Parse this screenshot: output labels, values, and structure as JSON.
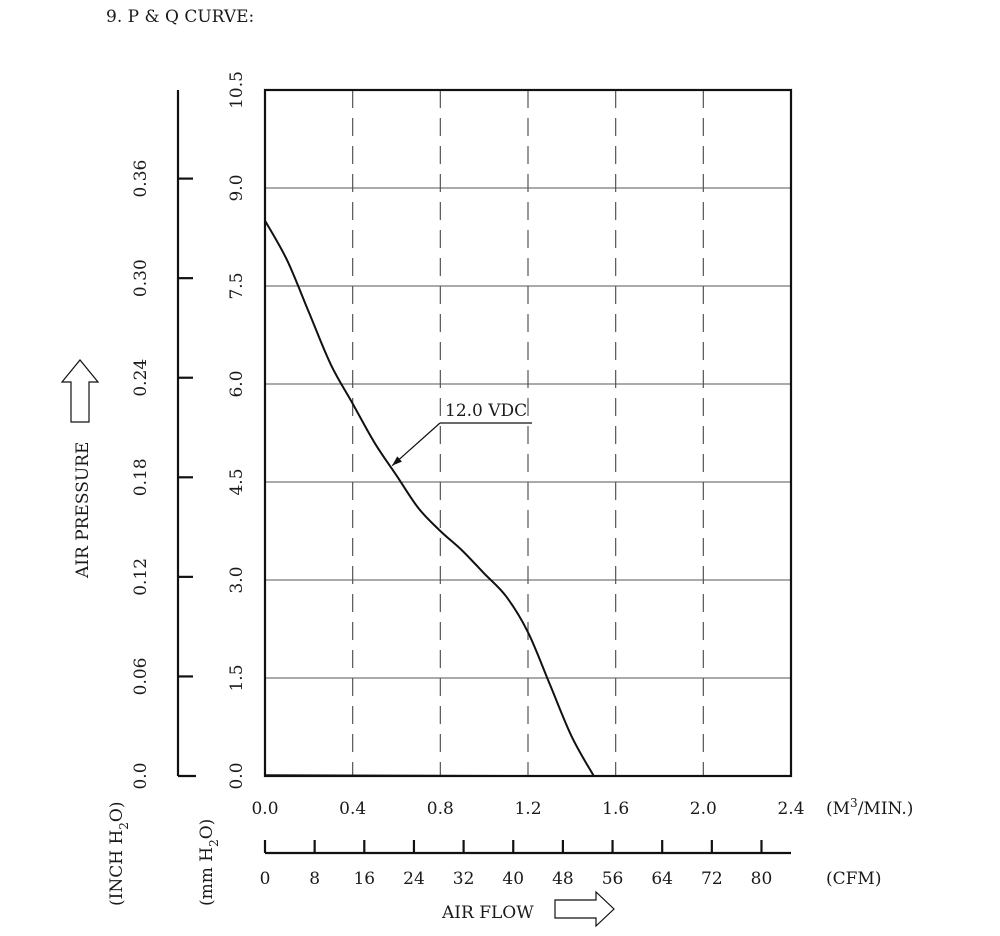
{
  "header": {
    "title": "9. P & Q CURVE:"
  },
  "chart_data": {
    "type": "line",
    "x_axis_primary": {
      "label_unit": "(M3/MIN.)",
      "label_base": "(M",
      "label_sup": "3",
      "label_tail": "/MIN.)",
      "range": [
        0,
        2.4
      ],
      "ticks": [
        "0.0",
        "0.4",
        "0.8",
        "1.2",
        "1.6",
        "2.0",
        "2.4"
      ],
      "tick_values": [
        0,
        0.4,
        0.8,
        1.2,
        1.6,
        2.0,
        2.4
      ]
    },
    "x_axis_secondary": {
      "label_unit": "(CFM)",
      "ticks": [
        "0",
        "8",
        "16",
        "24",
        "32",
        "40",
        "48",
        "56",
        "64",
        "72",
        "80"
      ],
      "tick_values": [
        0,
        8,
        16,
        24,
        32,
        40,
        48,
        56,
        64,
        72,
        80
      ]
    },
    "x_title": "AIR FLOW",
    "y_axis_primary": {
      "label_unit": "(mm H2O)",
      "label_base": "(mm H",
      "label_sub": "2",
      "label_tail": "O)",
      "range": [
        0,
        10.5
      ],
      "ticks": [
        "0.0",
        "1.5",
        "3.0",
        "4.5",
        "6.0",
        "7.5",
        "9.0",
        "10.5"
      ],
      "tick_values": [
        0,
        1.5,
        3.0,
        4.5,
        6.0,
        7.5,
        9.0,
        10.5
      ]
    },
    "y_axis_secondary": {
      "label_unit": "(INCH H2O)",
      "label_base": "(INCH H",
      "label_sub": "2",
      "label_tail": "O)",
      "ticks": [
        "0.0",
        "0.06",
        "0.12",
        "0.18",
        "0.24",
        "0.30",
        "0.36"
      ],
      "tick_values": [
        0,
        0.06,
        0.12,
        0.18,
        0.24,
        0.3,
        0.36
      ]
    },
    "y_title": "AIR PRESSURE",
    "grid": {
      "horizontal": "solid",
      "vertical": "dashed"
    },
    "series": [
      {
        "name": "12.0 VDC",
        "x": [
          0.0,
          0.1,
          0.2,
          0.3,
          0.4,
          0.5,
          0.6,
          0.7,
          0.8,
          0.9,
          1.0,
          1.1,
          1.2,
          1.3,
          1.4,
          1.5
        ],
        "y": [
          8.5,
          7.9,
          7.1,
          6.3,
          5.7,
          5.1,
          4.6,
          4.1,
          3.75,
          3.45,
          3.1,
          2.75,
          2.2,
          1.4,
          0.6,
          0.0
        ]
      }
    ],
    "annotation": {
      "text": "12.0 VDC",
      "points_to": {
        "x": 0.58,
        "y": 4.75
      }
    }
  }
}
